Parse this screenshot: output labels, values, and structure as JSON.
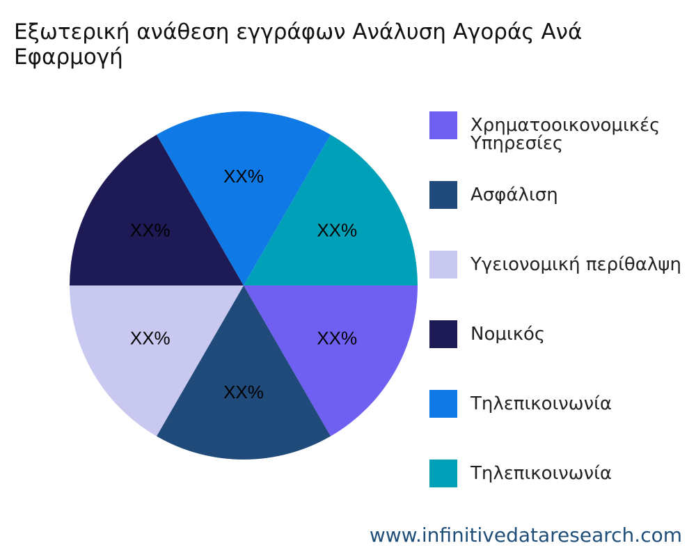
{
  "chart_data": {
    "type": "pie",
    "title": "Εξωτερική ανάθεση εγγράφων Ανάλυση Αγοράς Ανά Εφαρμογή",
    "categories": [
      "Χρηματοοικονομικές Υπηρεσίες",
      "Ασφάλιση",
      "Υγειονομική περίθαλψη",
      "Νομικός",
      "Τηλεπικοινωνία",
      "Τηλεπικοινωνία"
    ],
    "values": [
      16.7,
      16.7,
      16.7,
      16.7,
      16.7,
      16.7
    ],
    "value_labels": [
      "XX%",
      "XX%",
      "XX%",
      "XX%",
      "XX%",
      "XX%"
    ],
    "colors": [
      "#6f60f2",
      "#1f4a7a",
      "#c8c8f0",
      "#1e1a55",
      "#0f7ae5",
      "#00a0b8"
    ],
    "legend": "right",
    "watermark": "www.infinitivedataresearch.com"
  }
}
